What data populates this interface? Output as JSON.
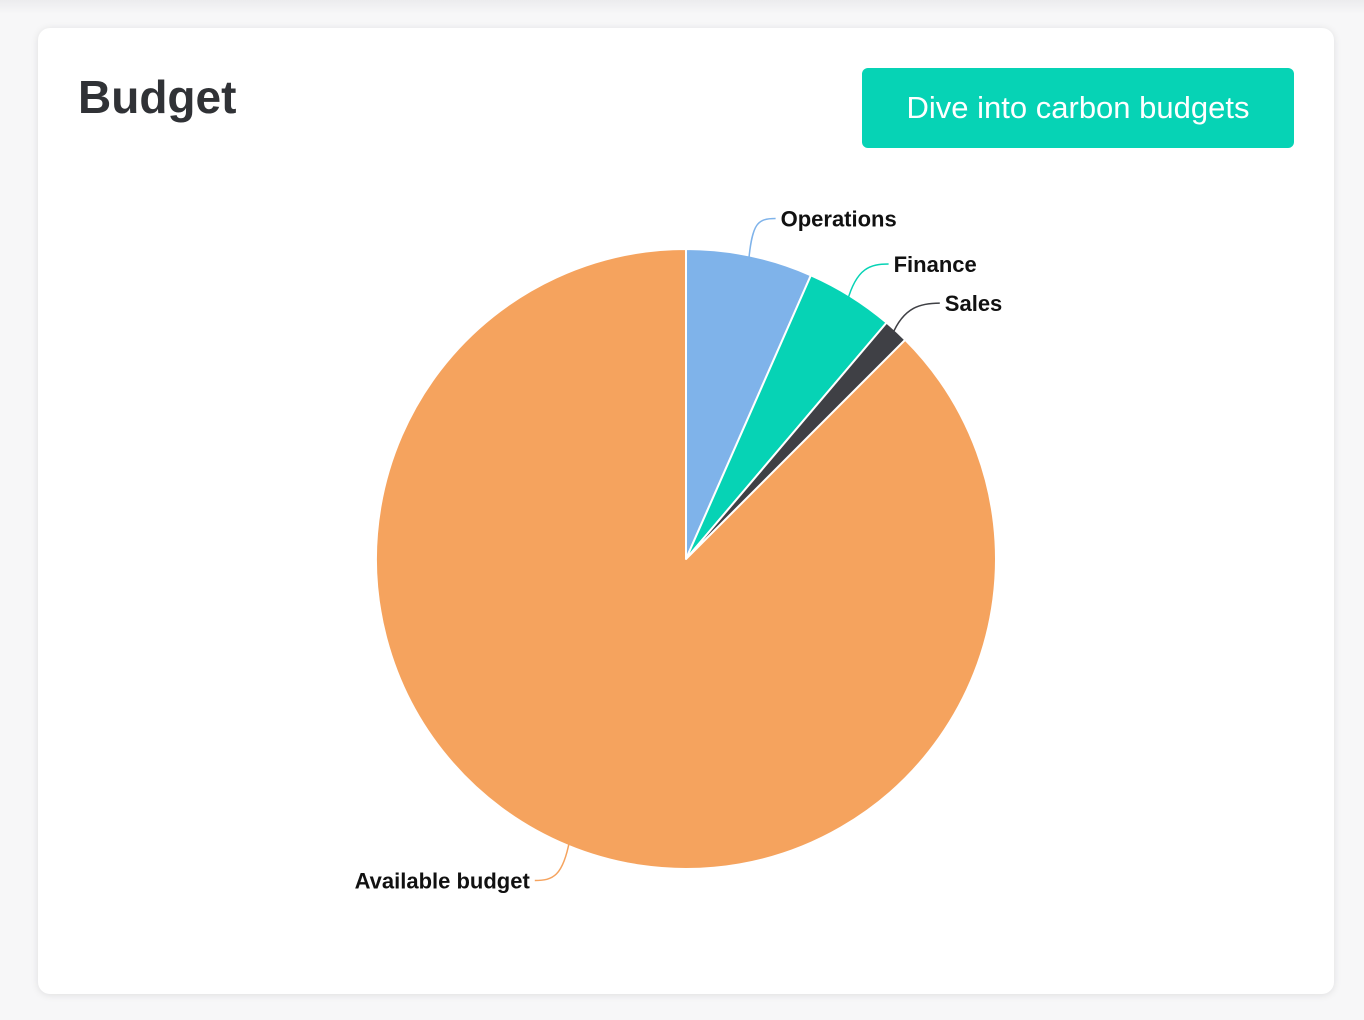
{
  "card": {
    "title": "Budget",
    "button_label": "Dive into carbon budgets"
  },
  "colors": {
    "accent": "#06d3b5",
    "title_text": "#303236",
    "label_text": "#111111",
    "slice_border": "#ffffff"
  },
  "chart_data": {
    "type": "pie",
    "title": "",
    "start_angle_deg": 0,
    "direction": "clockwise",
    "slices": [
      {
        "label": "Operations",
        "value": 6.6,
        "color": "#7fb3ea"
      },
      {
        "label": "Finance",
        "value": 4.6,
        "color": "#06d3b5"
      },
      {
        "label": "Sales",
        "value": 1.3,
        "color": "#3f4045"
      },
      {
        "label": "Available budget",
        "value": 87.5,
        "color": "#f5a35e"
      }
    ]
  }
}
